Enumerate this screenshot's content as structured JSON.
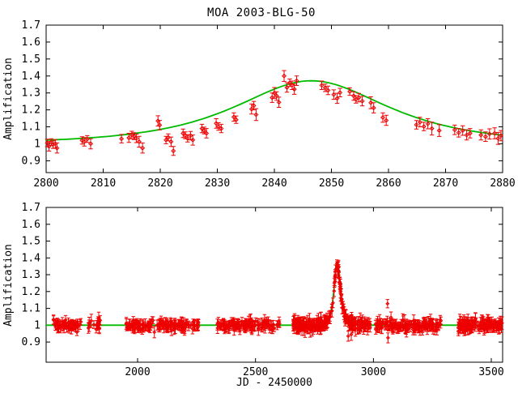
{
  "figure": {
    "title": "MOA 2003-BLG-50",
    "x_axis_label": "JD - 2450000",
    "y_axis_label": "Amplification",
    "colors": {
      "points": "#ee0000",
      "curve": "#00bb00",
      "frame": "#000000",
      "background": "#ffffff"
    }
  },
  "chart_data": [
    {
      "type": "scatter",
      "title": "MOA 2003-BLG-50",
      "xlabel": "",
      "ylabel": "Amplification",
      "xlim": [
        2800,
        2880
      ],
      "ylim": [
        0.83,
        1.7
      ],
      "x_tick_values": [
        2800,
        2810,
        2820,
        2830,
        2840,
        2850,
        2860,
        2870,
        2880
      ],
      "x_tick_labels": [
        "2800",
        "2810",
        "2820",
        "2830",
        "2840",
        "2850",
        "2860",
        "2870",
        "2880"
      ],
      "y_tick_values": [
        0.9,
        1.0,
        1.1,
        1.2,
        1.3,
        1.4,
        1.5,
        1.6,
        1.7
      ],
      "y_tick_labels": [
        "0.9",
        "1",
        "1.1",
        "1.2",
        "1.3",
        "1.4",
        "1.5",
        "1.6",
        "1.7"
      ],
      "legend": "none",
      "grid": false,
      "model_curve": {
        "shape": "paczynski",
        "t0": 2846.5,
        "u0": 0.96,
        "tE": 17.7,
        "baseline": 1.0,
        "A_max": 1.37
      },
      "points": [
        [
          2800.2,
          1.005,
          0.022
        ],
        [
          2800.5,
          0.985,
          0.028
        ],
        [
          2800.9,
          1.01,
          0.02
        ],
        [
          2801.2,
          0.995,
          0.022
        ],
        [
          2801.6,
          1.0,
          0.025
        ],
        [
          2801.9,
          0.975,
          0.03
        ],
        [
          2806.3,
          1.02,
          0.022
        ],
        [
          2806.7,
          1.012,
          0.025
        ],
        [
          2807.2,
          1.028,
          0.02
        ],
        [
          2807.8,
          1.0,
          0.03
        ],
        [
          2813.2,
          1.03,
          0.025
        ],
        [
          2814.5,
          1.035,
          0.027
        ],
        [
          2815.0,
          1.052,
          0.022
        ],
        [
          2815.4,
          1.045,
          0.02
        ],
        [
          2815.8,
          1.032,
          0.025
        ],
        [
          2816.3,
          1.012,
          0.032
        ],
        [
          2816.9,
          0.975,
          0.03
        ],
        [
          2819.6,
          1.135,
          0.03
        ],
        [
          2819.9,
          1.11,
          0.028
        ],
        [
          2821.0,
          1.022,
          0.022
        ],
        [
          2821.4,
          1.038,
          0.02
        ],
        [
          2821.9,
          1.012,
          0.028
        ],
        [
          2822.3,
          0.958,
          0.026
        ],
        [
          2824.0,
          1.062,
          0.025
        ],
        [
          2824.4,
          1.05,
          0.02
        ],
        [
          2824.8,
          1.032,
          0.022
        ],
        [
          2825.3,
          1.048,
          0.025
        ],
        [
          2825.7,
          1.022,
          0.03
        ],
        [
          2827.3,
          1.09,
          0.025
        ],
        [
          2827.7,
          1.078,
          0.02
        ],
        [
          2828.1,
          1.062,
          0.028
        ],
        [
          2829.8,
          1.12,
          0.028
        ],
        [
          2830.2,
          1.102,
          0.022
        ],
        [
          2830.7,
          1.09,
          0.025
        ],
        [
          2832.9,
          1.158,
          0.025
        ],
        [
          2833.3,
          1.142,
          0.022
        ],
        [
          2836.0,
          1.205,
          0.03
        ],
        [
          2836.4,
          1.225,
          0.025
        ],
        [
          2836.8,
          1.172,
          0.035
        ],
        [
          2839.6,
          1.272,
          0.028
        ],
        [
          2840.0,
          1.3,
          0.032
        ],
        [
          2840.4,
          1.282,
          0.025
        ],
        [
          2840.8,
          1.245,
          0.03
        ],
        [
          2841.7,
          1.4,
          0.032
        ],
        [
          2842.2,
          1.332,
          0.028
        ],
        [
          2842.7,
          1.36,
          0.022
        ],
        [
          2843.1,
          1.345,
          0.025
        ],
        [
          2843.5,
          1.322,
          0.03
        ],
        [
          2843.9,
          1.372,
          0.028
        ],
        [
          2848.3,
          1.345,
          0.025
        ],
        [
          2848.9,
          1.33,
          0.022
        ],
        [
          2849.4,
          1.315,
          0.025
        ],
        [
          2850.4,
          1.29,
          0.028
        ],
        [
          2851.0,
          1.268,
          0.03
        ],
        [
          2851.5,
          1.302,
          0.025
        ],
        [
          2853.2,
          1.308,
          0.022
        ],
        [
          2853.9,
          1.282,
          0.025
        ],
        [
          2854.3,
          1.262,
          0.022
        ],
        [
          2854.8,
          1.272,
          0.025
        ],
        [
          2855.4,
          1.252,
          0.028
        ],
        [
          2856.9,
          1.242,
          0.035
        ],
        [
          2857.4,
          1.212,
          0.03
        ],
        [
          2859.0,
          1.155,
          0.028
        ],
        [
          2859.6,
          1.138,
          0.03
        ],
        [
          2864.9,
          1.112,
          0.025
        ],
        [
          2865.5,
          1.128,
          0.028
        ],
        [
          2866.2,
          1.102,
          0.025
        ],
        [
          2866.9,
          1.118,
          0.03
        ],
        [
          2867.6,
          1.09,
          0.038
        ],
        [
          2868.9,
          1.078,
          0.035
        ],
        [
          2871.6,
          1.082,
          0.028
        ],
        [
          2872.3,
          1.065,
          0.025
        ],
        [
          2873.0,
          1.078,
          0.028
        ],
        [
          2873.7,
          1.052,
          0.03
        ],
        [
          2874.3,
          1.062,
          0.028
        ],
        [
          2876.2,
          1.052,
          0.03
        ],
        [
          2877.0,
          1.042,
          0.028
        ],
        [
          2877.7,
          1.058,
          0.03
        ],
        [
          2878.6,
          1.062,
          0.032
        ],
        [
          2879.2,
          1.032,
          0.035
        ],
        [
          2879.7,
          1.048,
          0.03
        ]
      ]
    },
    {
      "type": "scatter",
      "title": "",
      "xlabel": "JD - 2450000",
      "ylabel": "Amplification",
      "xlim": [
        1612,
        3548
      ],
      "ylim": [
        0.78,
        1.7
      ],
      "x_tick_values": [
        2000,
        2500,
        3000,
        3500
      ],
      "x_tick_labels": [
        "2000",
        "2500",
        "3000",
        "3500"
      ],
      "y_tick_values": [
        0.9,
        1.0,
        1.1,
        1.2,
        1.3,
        1.4,
        1.5,
        1.6,
        1.7
      ],
      "y_tick_labels": [
        "0.9",
        "1",
        "1.1",
        "1.2",
        "1.3",
        "1.4",
        "1.5",
        "1.6",
        "1.7"
      ],
      "legend": "none",
      "grid": false,
      "model_curve": {
        "shape": "paczynski",
        "t0": 2846.5,
        "u0": 0.96,
        "tE": 17.7,
        "baseline": 1.0,
        "A_max": 1.37
      },
      "seed": 7,
      "clusters": [
        {
          "x_start": 1642,
          "x_end": 1765,
          "n": 60,
          "sigma": 0.013,
          "err_min": 0.015,
          "err_max": 0.03
        },
        {
          "x_start": 1785,
          "x_end": 1842,
          "n": 18,
          "sigma": 0.015,
          "err_min": 0.02,
          "err_max": 0.04
        },
        {
          "x_start": 1952,
          "x_end": 2258,
          "n": 135,
          "sigma": 0.014,
          "err_min": 0.015,
          "err_max": 0.035
        },
        {
          "x_start": 2332,
          "x_end": 2602,
          "n": 115,
          "sigma": 0.014,
          "err_min": 0.015,
          "err_max": 0.035
        },
        {
          "x_start": 2660,
          "x_end": 2990,
          "n": 230,
          "sigma": 0.014,
          "err_min": 0.015,
          "err_max": 0.045
        },
        {
          "x_start": 3008,
          "x_end": 3290,
          "n": 135,
          "sigma": 0.015,
          "err_min": 0.015,
          "err_max": 0.04
        },
        {
          "x_start": 3360,
          "x_end": 3548,
          "n": 125,
          "sigma": 0.015,
          "err_min": 0.015,
          "err_max": 0.04
        }
      ],
      "outliers": [
        [
          3060,
          1.128,
          0.025
        ],
        [
          3062,
          0.925,
          0.03
        ],
        [
          2893,
          0.935,
          0.03
        ],
        [
          2906,
          0.945,
          0.035
        ]
      ]
    }
  ]
}
